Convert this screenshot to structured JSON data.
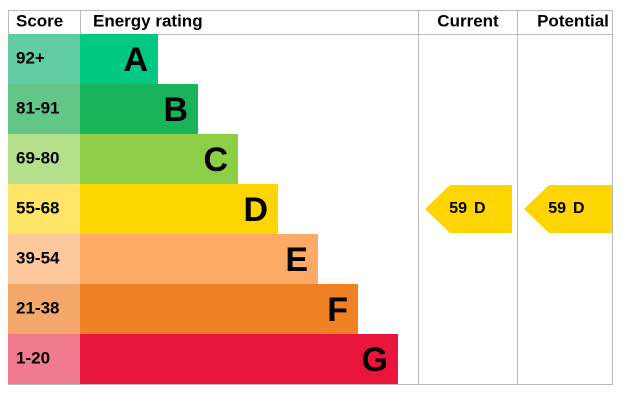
{
  "header": {
    "score": "Score",
    "energy_rating": "Energy rating",
    "current": "Current",
    "potential": "Potential"
  },
  "bands": [
    {
      "score": "92+",
      "letter": "A",
      "color": "#00c781",
      "score_color": "#62cda4"
    },
    {
      "score": "81-91",
      "letter": "B",
      "color": "#19b459",
      "score_color": "#63c689"
    },
    {
      "score": "69-80",
      "letter": "C",
      "color": "#8dce46",
      "score_color": "#b6df8b"
    },
    {
      "score": "55-68",
      "letter": "D",
      "color": "#ffd500",
      "score_color": "#ffe468"
    },
    {
      "score": "39-54",
      "letter": "E",
      "color": "#fcaa65",
      "score_color": "#fdc99c"
    },
    {
      "score": "21-38",
      "letter": "F",
      "color": "#ef8023",
      "score_color": "#f4a869"
    },
    {
      "score": "1-20",
      "letter": "G",
      "color": "#e9153b",
      "score_color": "#f07b8e"
    }
  ],
  "current": {
    "score": 59,
    "band": "D",
    "color": "#ffd500"
  },
  "potential": {
    "score": 59,
    "band": "D",
    "color": "#ffd500"
  }
}
